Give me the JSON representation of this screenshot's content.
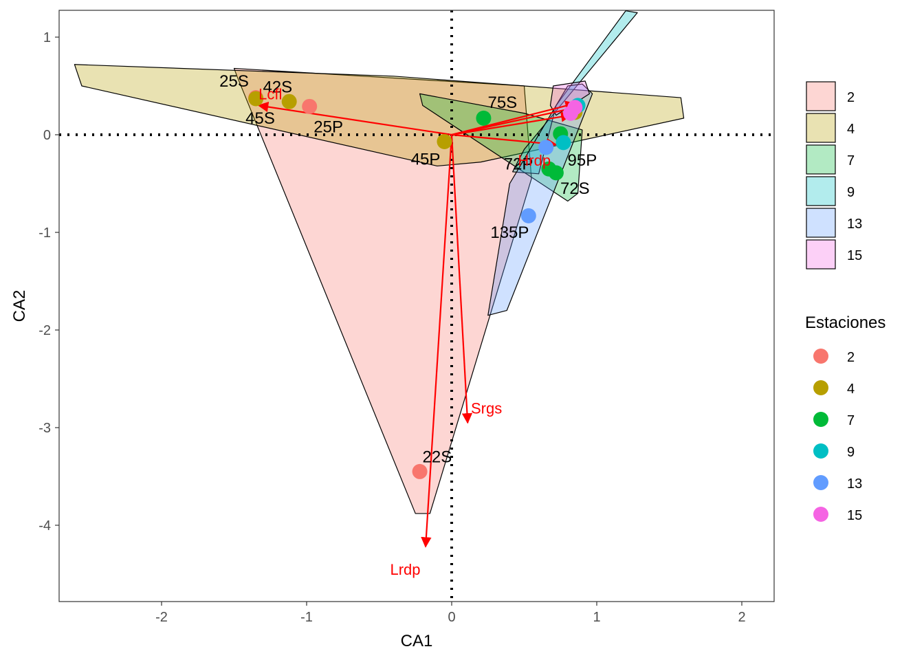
{
  "chart_data": {
    "type": "scatter",
    "xlabel": "CA1",
    "ylabel": "CA2",
    "xlim": [
      -2.7,
      2.25
    ],
    "ylim": [
      -4.8,
      1.27
    ],
    "x_ticks": [
      -2,
      -1,
      0,
      1,
      2
    ],
    "y_ticks": [
      1,
      0,
      -1,
      -2,
      -3,
      -4
    ],
    "x_tick_labels": [
      "-2",
      "-1",
      "0",
      "1",
      "2"
    ],
    "y_tick_labels": [
      "1",
      "0",
      "-1",
      "-2",
      "-3",
      "-4"
    ],
    "grid": false,
    "reference_lines": [
      {
        "orientation": "horizontal",
        "value": 0,
        "style": "dotted"
      },
      {
        "orientation": "vertical",
        "value": 0,
        "style": "dotted"
      }
    ],
    "legend_fill": {
      "title": "",
      "position": "right",
      "entries": [
        {
          "label": "2",
          "color": "#F8766D"
        },
        {
          "label": "4",
          "color": "#B79F00"
        },
        {
          "label": "7",
          "color": "#00BA38"
        },
        {
          "label": "9",
          "color": "#00BFC4"
        },
        {
          "label": "13",
          "color": "#619CFF"
        },
        {
          "label": "15",
          "color": "#F564E3"
        }
      ]
    },
    "legend_color": {
      "title": "Estaciones",
      "position": "right",
      "entries": [
        {
          "label": "2",
          "color": "#F8766D"
        },
        {
          "label": "4",
          "color": "#B79F00"
        },
        {
          "label": "7",
          "color": "#00BA38"
        },
        {
          "label": "9",
          "color": "#00BFC4"
        },
        {
          "label": "13",
          "color": "#619CFF"
        },
        {
          "label": "15",
          "color": "#F564E3"
        }
      ]
    },
    "hulls": [
      {
        "group": "2",
        "color": "#F8766D",
        "points": [
          [
            -1.5,
            0.68
          ],
          [
            -1.48,
            0.6
          ],
          [
            -0.25,
            -3.88
          ],
          [
            -0.15,
            -3.88
          ],
          [
            0.55,
            -0.45
          ],
          [
            0.5,
            0.5
          ]
        ]
      },
      {
        "group": "4",
        "color": "#B79F00",
        "points": [
          [
            -2.6,
            0.72
          ],
          [
            -2.55,
            0.5
          ],
          [
            -0.1,
            -0.32
          ],
          [
            0.2,
            -0.28
          ],
          [
            1.6,
            0.17
          ],
          [
            1.58,
            0.38
          ],
          [
            -0.4,
            0.6
          ]
        ]
      },
      {
        "group": "7",
        "color": "#00BA38",
        "points": [
          [
            -0.22,
            0.42
          ],
          [
            -0.2,
            0.3
          ],
          [
            0.8,
            -0.68
          ],
          [
            0.87,
            -0.6
          ],
          [
            0.9,
            0.05
          ],
          [
            0.5,
            0.22
          ]
        ]
      },
      {
        "group": "9",
        "color": "#00BFC4",
        "points": [
          [
            0.42,
            -0.38
          ],
          [
            0.5,
            -0.15
          ],
          [
            1.28,
            1.25
          ],
          [
            1.2,
            1.27
          ],
          [
            0.72,
            0.3
          ],
          [
            0.6,
            -0.4
          ]
        ]
      },
      {
        "group": "13",
        "color": "#619CFF",
        "points": [
          [
            0.25,
            -1.85
          ],
          [
            0.38,
            -1.8
          ],
          [
            0.97,
            0.42
          ],
          [
            0.9,
            0.52
          ],
          [
            0.8,
            0.5
          ],
          [
            0.4,
            -0.5
          ]
        ]
      },
      {
        "group": "15",
        "color": "#F564E3",
        "points": [
          [
            0.7,
            0.5
          ],
          [
            0.92,
            0.55
          ],
          [
            0.95,
            0.42
          ],
          [
            0.72,
            0.2
          ],
          [
            0.68,
            0.3
          ]
        ]
      }
    ],
    "points": [
      {
        "x": -1.35,
        "y": 0.38,
        "group": "2"
      },
      {
        "x": -0.98,
        "y": 0.29,
        "group": "2"
      },
      {
        "x": -0.22,
        "y": -3.45,
        "group": "2"
      },
      {
        "x": -1.35,
        "y": 0.37,
        "group": "4"
      },
      {
        "x": -1.12,
        "y": 0.34,
        "group": "4"
      },
      {
        "x": -0.05,
        "y": -0.07,
        "group": "4"
      },
      {
        "x": 0.85,
        "y": 0.23,
        "group": "4"
      },
      {
        "x": 0.22,
        "y": 0.17,
        "group": "7"
      },
      {
        "x": 0.67,
        "y": -0.35,
        "group": "7"
      },
      {
        "x": 0.72,
        "y": -0.39,
        "group": "7"
      },
      {
        "x": 0.75,
        "y": 0.01,
        "group": "7"
      },
      {
        "x": 0.87,
        "y": 0.3,
        "group": "9"
      },
      {
        "x": 0.77,
        "y": -0.08,
        "group": "9"
      },
      {
        "x": 0.53,
        "y": -0.83,
        "group": "13"
      },
      {
        "x": 0.65,
        "y": -0.13,
        "group": "13"
      },
      {
        "x": 0.85,
        "y": 0.28,
        "group": "15"
      },
      {
        "x": 0.82,
        "y": 0.22,
        "group": "15"
      }
    ],
    "point_labels": [
      {
        "text": "25S",
        "x": -1.5,
        "y": 0.55
      },
      {
        "text": "42S",
        "x": -1.2,
        "y": 0.49
      },
      {
        "text": "45S",
        "x": -1.32,
        "y": 0.17
      },
      {
        "text": "25P",
        "x": -0.85,
        "y": 0.08
      },
      {
        "text": "45P",
        "x": -0.18,
        "y": -0.25
      },
      {
        "text": "75S",
        "x": 0.35,
        "y": 0.33
      },
      {
        "text": "72P",
        "x": 0.46,
        "y": -0.3
      },
      {
        "text": "95P",
        "x": 0.9,
        "y": -0.26
      },
      {
        "text": "72S",
        "x": 0.85,
        "y": -0.55
      },
      {
        "text": "135P",
        "x": 0.4,
        "y": -1.0
      },
      {
        "text": "22S",
        "x": -0.1,
        "y": -3.3
      }
    ],
    "arrows": [
      {
        "label": "Lcfl",
        "x": -1.33,
        "y": 0.3,
        "label_x": -1.25,
        "label_y": 0.42
      },
      {
        "label": "Hrdp",
        "x": 0.72,
        "y": -0.1,
        "label_x": 0.57,
        "label_y": -0.26
      },
      {
        "label": "Srgs",
        "x": 0.11,
        "y": -2.95,
        "label_x": 0.24,
        "label_y": -2.8
      },
      {
        "label": "Lrdp",
        "x": -0.18,
        "y": -4.22,
        "label_x": -0.32,
        "label_y": -4.45
      },
      {
        "label": "",
        "x": 0.85,
        "y": 0.32
      },
      {
        "label": "",
        "x": 0.82,
        "y": 0.2
      },
      {
        "label": "",
        "x": 0.86,
        "y": 0.28
      }
    ],
    "arrow_color": "#ff0000"
  }
}
